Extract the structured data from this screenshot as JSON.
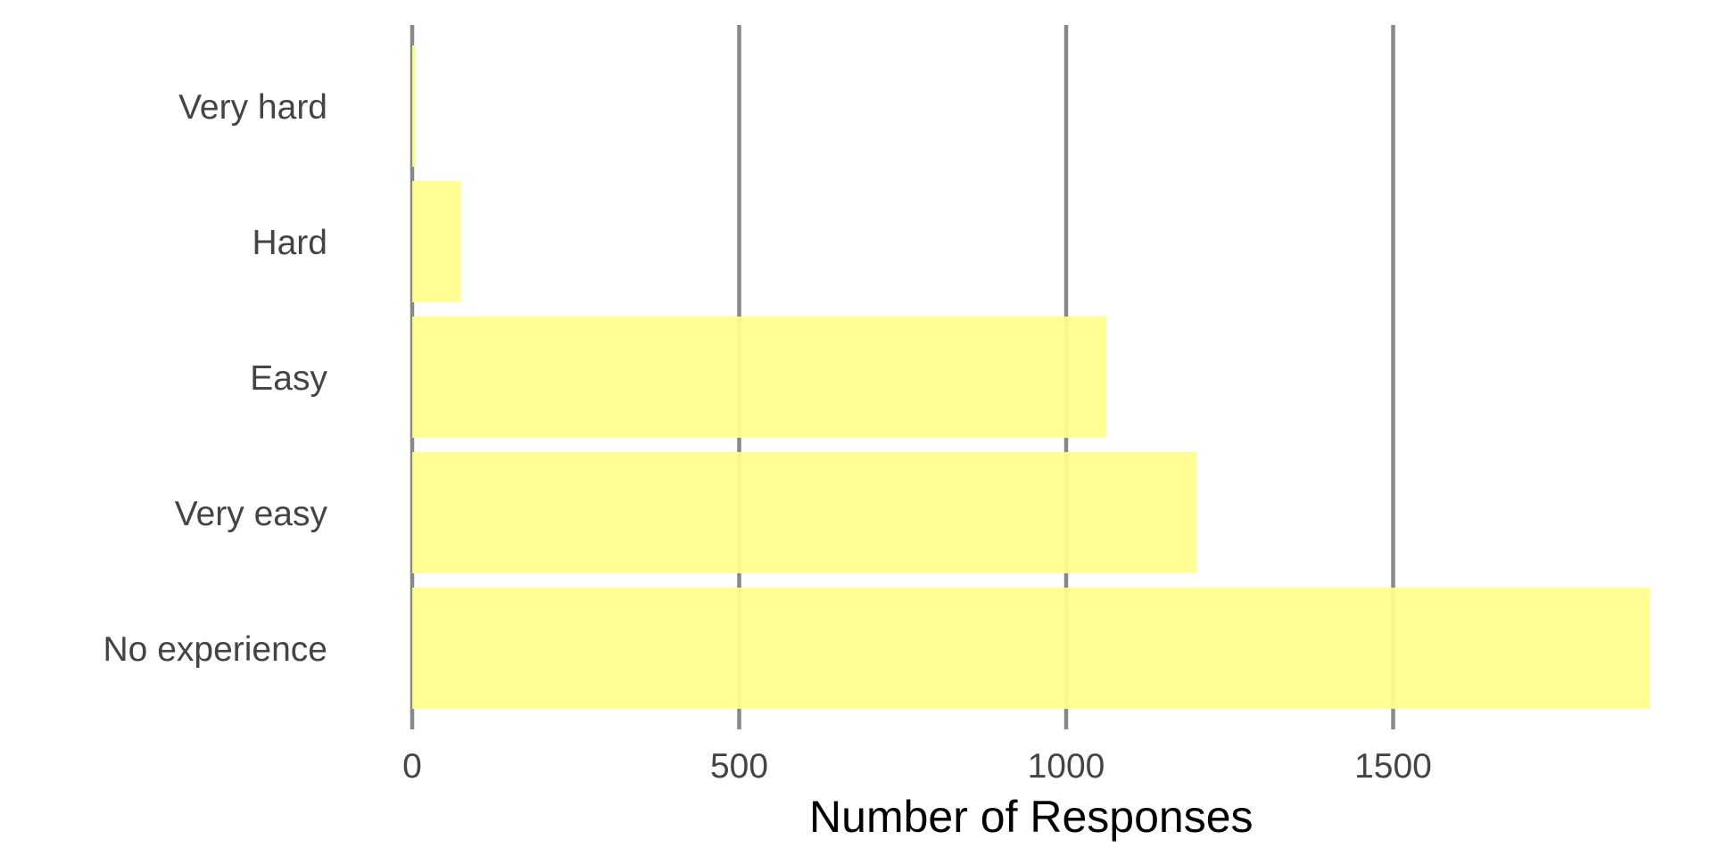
{
  "chart_data": {
    "type": "bar",
    "orientation": "horizontal",
    "categories": [
      "Very hard",
      "Hard",
      "Easy",
      "Very easy",
      "No experience"
    ],
    "values": [
      5,
      75,
      1062,
      1200,
      1893
    ],
    "title": "",
    "xlabel": "Number of Responses",
    "ylabel": "",
    "xlim": [
      0,
      1893
    ],
    "xticks": [
      0,
      500,
      1000,
      1500
    ],
    "xtick_labels": [
      "0",
      "500",
      "1000",
      "1500"
    ],
    "grid": "vertical major lines",
    "legend": "none",
    "colors": {
      "bar": "#ffff8c",
      "grid": "#888888",
      "tick_text": "#444444",
      "axis_title": "#000000"
    }
  }
}
